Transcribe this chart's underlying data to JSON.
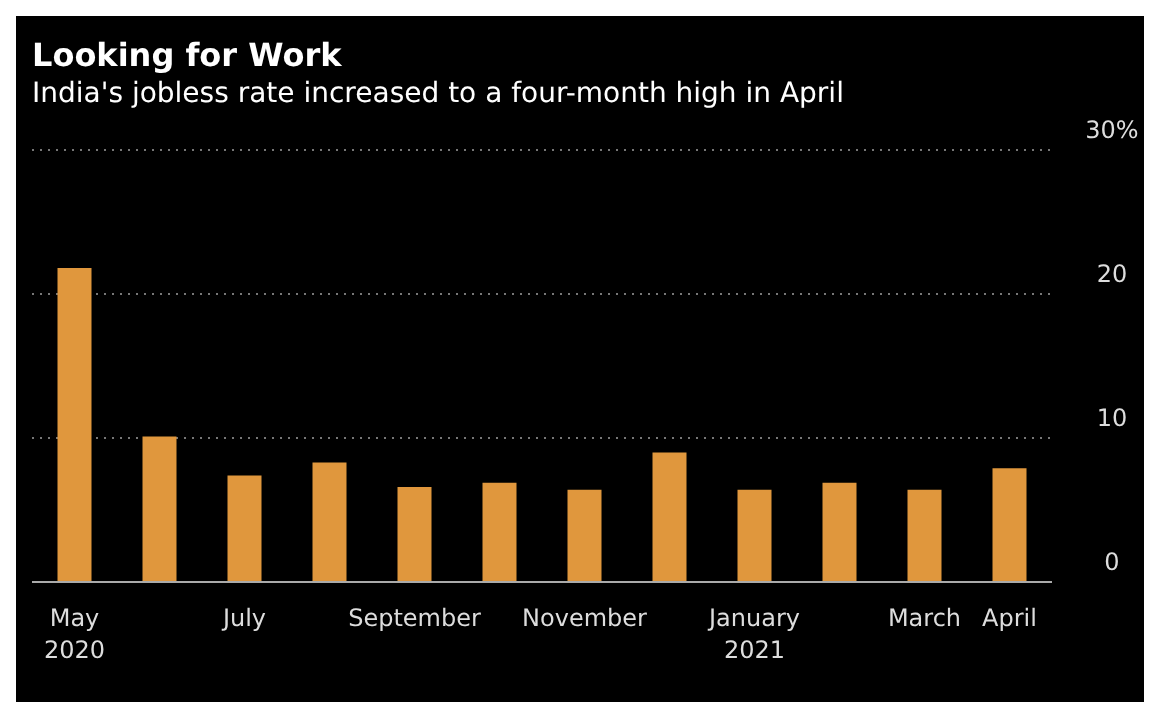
{
  "chart_data": {
    "type": "bar",
    "title": "Looking for Work",
    "subtitle": "India's jobless rate increased to a four-month high in April",
    "categories": [
      "May\n2020",
      null,
      "July",
      null,
      "September",
      null,
      "November",
      null,
      "January\n2021",
      null,
      "March",
      "April"
    ],
    "values": [
      21.8,
      10.1,
      7.4,
      8.3,
      6.6,
      6.9,
      6.4,
      9.0,
      6.4,
      6.9,
      6.4,
      7.9
    ],
    "color": "#e0973d",
    "ylim": [
      0,
      30
    ],
    "yticks": [
      0,
      10,
      20,
      {
        "value": 30,
        "label": "30%"
      }
    ],
    "grid": "y"
  }
}
